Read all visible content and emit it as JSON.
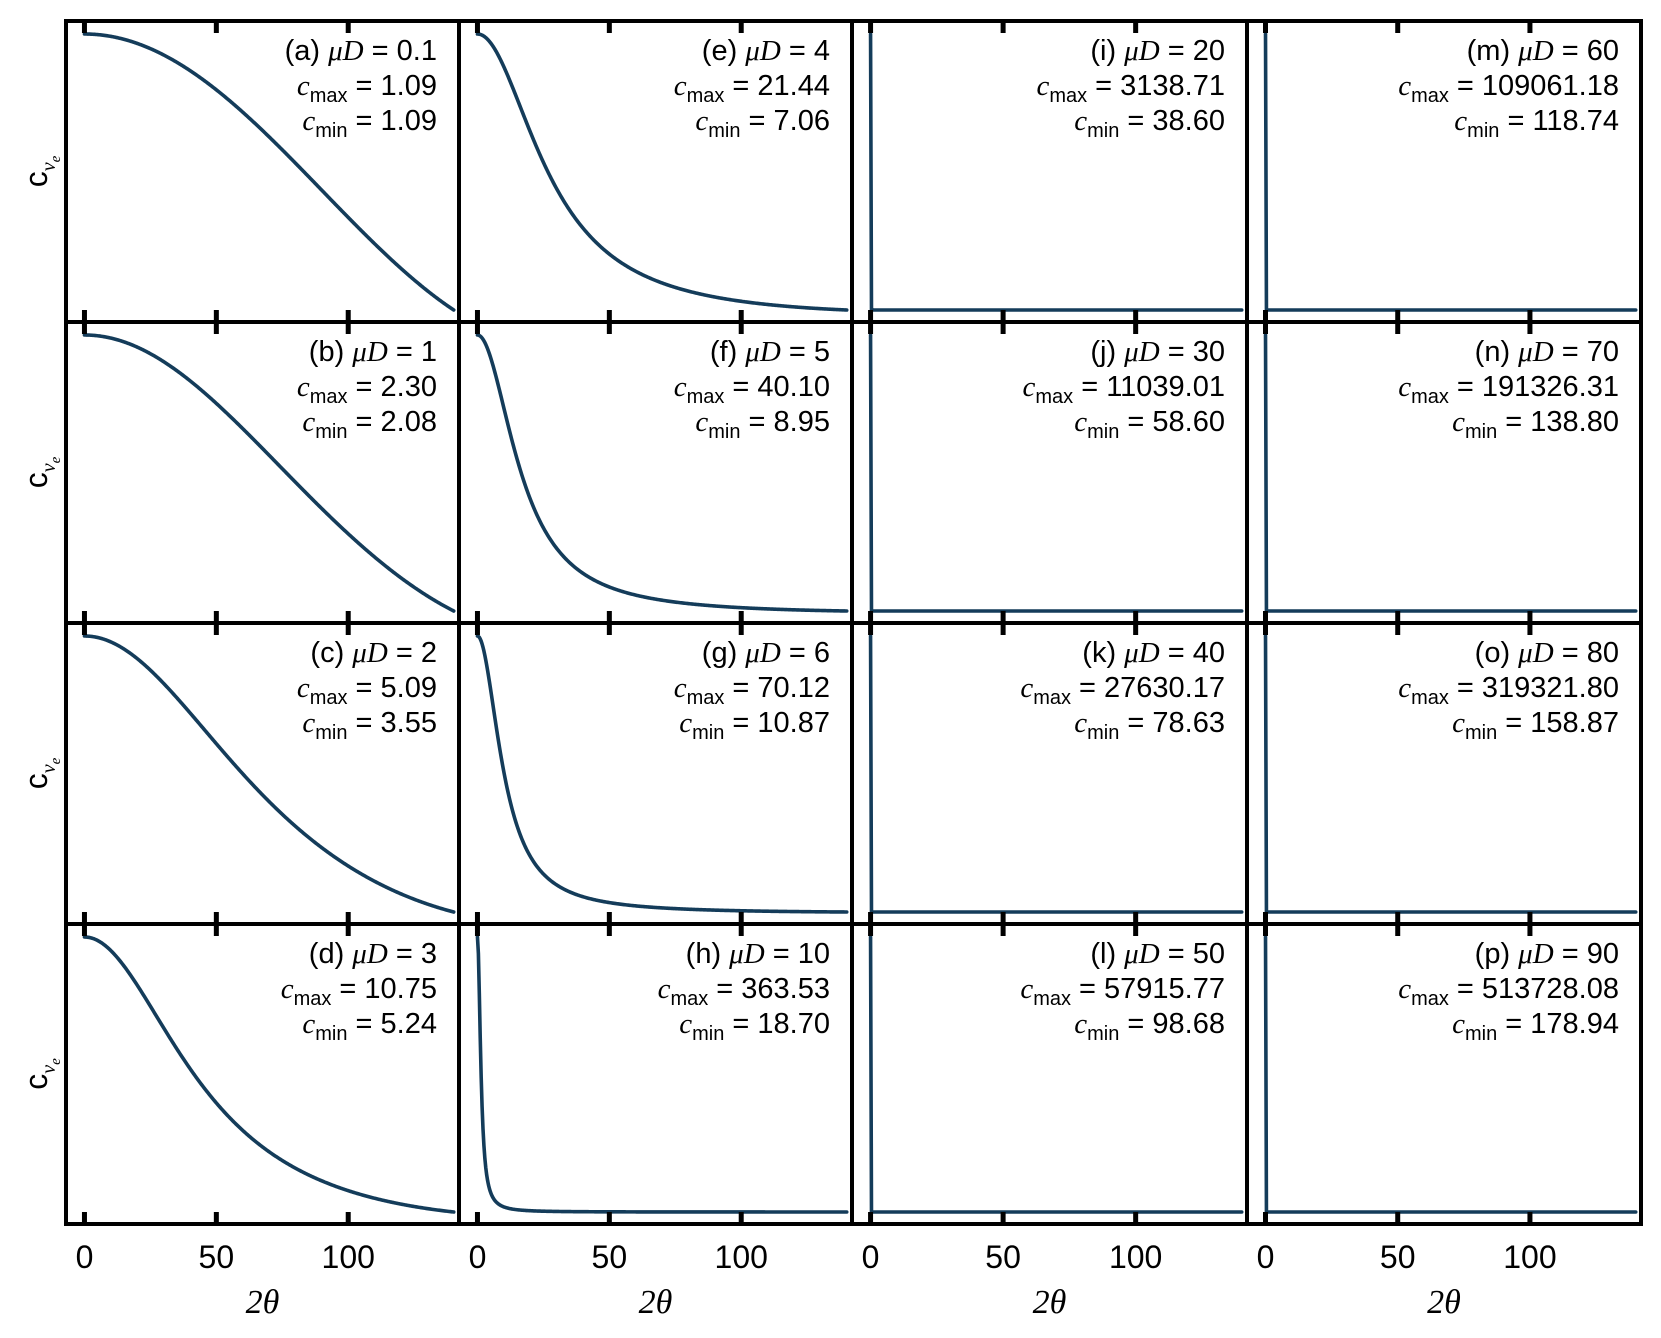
{
  "chart_data": {
    "type": "line",
    "layout": "4x4 grid of panels, column-major (a-d, e-h, i-l, m-p)",
    "xlabel": "2θ",
    "ylabel": "c_{v_e}",
    "xticks": [
      0,
      50,
      100
    ],
    "xlim": [
      -7,
      142
    ],
    "x_range": [
      0,
      140
    ],
    "y_ticks_shown": false,
    "line_color": "#143c5a",
    "panels": [
      {
        "label": "(a)",
        "param": "μD",
        "muD": "0.1",
        "cmax": "1.09",
        "cmin": "1.09"
      },
      {
        "label": "(b)",
        "param": "μD",
        "muD": "1",
        "cmax": "2.30",
        "cmin": "2.08"
      },
      {
        "label": "(c)",
        "param": "μD",
        "muD": "2",
        "cmax": "5.09",
        "cmin": "3.55"
      },
      {
        "label": "(d)",
        "param": "μD",
        "muD": "3",
        "cmax": "10.75",
        "cmin": "5.24"
      },
      {
        "label": "(e)",
        "param": "μD",
        "muD": "4",
        "cmax": "21.44",
        "cmin": "7.06"
      },
      {
        "label": "(f)",
        "param": "μD",
        "muD": "5",
        "cmax": "40.10",
        "cmin": "8.95"
      },
      {
        "label": "(g)",
        "param": "μD",
        "muD": "6",
        "cmax": "70.12",
        "cmin": "10.87"
      },
      {
        "label": "(h)",
        "param": "μD",
        "muD": "10",
        "cmax": "363.53",
        "cmin": "18.70"
      },
      {
        "label": "(i)",
        "param": "μD",
        "muD": "20",
        "cmax": "3138.71",
        "cmin": "38.60"
      },
      {
        "label": "(j)",
        "param": "μD",
        "muD": "30",
        "cmax": "11039.01",
        "cmin": "58.60"
      },
      {
        "label": "(k)",
        "param": "μD",
        "muD": "40",
        "cmax": "27630.17",
        "cmin": "78.63"
      },
      {
        "label": "(l)",
        "param": "μD",
        "muD": "50",
        "cmax": "57915.77",
        "cmin": "98.68"
      },
      {
        "label": "(m)",
        "param": "μD",
        "muD": "60",
        "cmax": "109061.18",
        "cmin": "118.74"
      },
      {
        "label": "(n)",
        "param": "μD",
        "muD": "70",
        "cmax": "191326.31",
        "cmin": "138.80"
      },
      {
        "label": "(o)",
        "param": "μD",
        "muD": "80",
        "cmax": "319321.80",
        "cmin": "158.87"
      },
      {
        "label": "(p)",
        "param": "μD",
        "muD": "90",
        "cmax": "513728.08",
        "cmin": "178.94"
      }
    ]
  }
}
